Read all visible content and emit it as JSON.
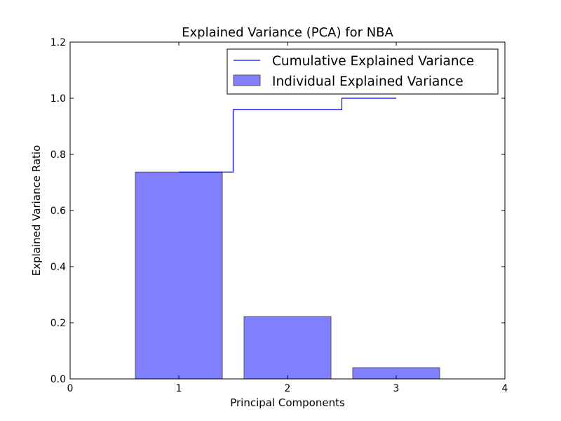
{
  "chart_data": {
    "type": "bar",
    "title": "Explained Variance (PCA) for NBA",
    "xlabel": "Principal Components",
    "ylabel": "Explained Variance Ratio",
    "xlim": [
      0,
      4
    ],
    "ylim": [
      0.0,
      1.2
    ],
    "x_ticks": [
      "0",
      "1",
      "2",
      "3",
      "4"
    ],
    "y_ticks": [
      "0.0",
      "0.2",
      "0.4",
      "0.6",
      "0.8",
      "1.0",
      "1.2"
    ],
    "categories": [
      1,
      2,
      3
    ],
    "bar_width": 0.8,
    "series": [
      {
        "name": "Individual Explained Variance",
        "kind": "bar",
        "color": "#8080ff",
        "values": [
          0.737,
          0.222,
          0.04
        ]
      },
      {
        "name": "Cumulative Explained Variance",
        "kind": "step",
        "color": "#0000ff",
        "values": [
          0.737,
          0.959,
          1.0
        ]
      }
    ],
    "legend": {
      "position": "top-right"
    },
    "grid": false
  }
}
